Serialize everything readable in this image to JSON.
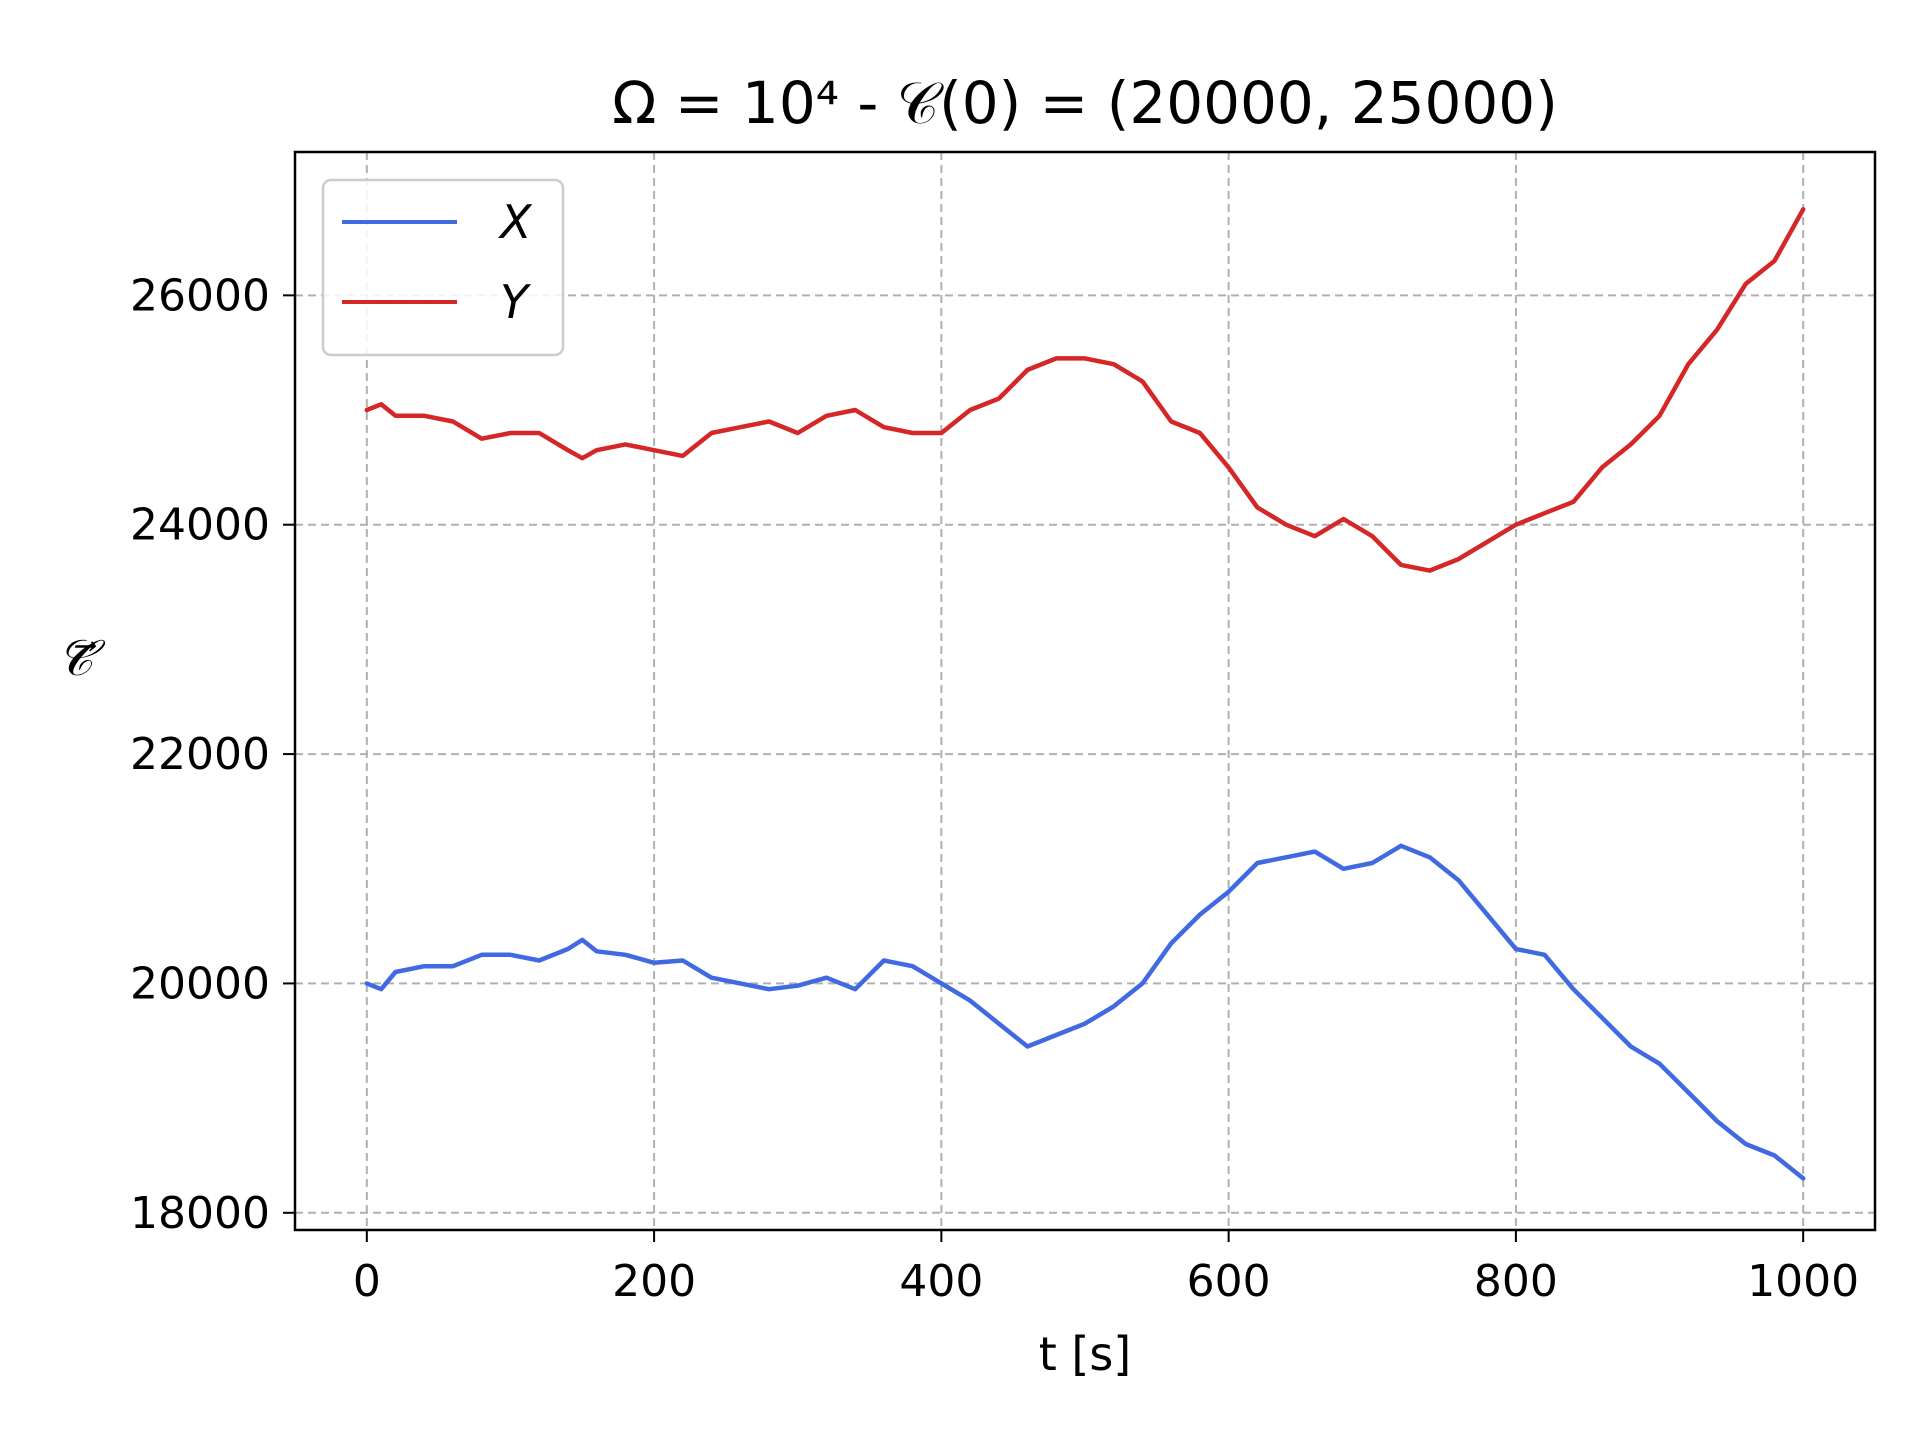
{
  "chart_data": {
    "type": "line",
    "title": "Ω = 10⁴ - 𝒞(0) = (20000, 25000)",
    "xlabel": "t [s]",
    "ylabel": "𝒞⃗",
    "xlim": [
      -50,
      1050
    ],
    "ylim": [
      17850,
      27250
    ],
    "xticks": [
      0,
      200,
      400,
      600,
      800,
      1000
    ],
    "yticks": [
      18000,
      20000,
      22000,
      24000,
      26000
    ],
    "xtick_labels": [
      "0",
      "200",
      "400",
      "600",
      "800",
      "1000"
    ],
    "ytick_labels": [
      "18000",
      "20000",
      "22000",
      "24000",
      "26000"
    ],
    "grid": true,
    "legend_position": "top-left",
    "series": [
      {
        "name": "X",
        "color": "#4169e1",
        "x": [
          0,
          10,
          20,
          40,
          60,
          80,
          100,
          120,
          140,
          150,
          160,
          180,
          200,
          220,
          240,
          260,
          280,
          300,
          320,
          340,
          360,
          380,
          400,
          420,
          440,
          460,
          480,
          500,
          520,
          540,
          560,
          580,
          600,
          620,
          640,
          660,
          680,
          700,
          720,
          740,
          760,
          780,
          800,
          820,
          840,
          860,
          880,
          900,
          920,
          940,
          960,
          980,
          1000
        ],
        "y": [
          20000,
          19950,
          20100,
          20150,
          20150,
          20250,
          20250,
          20200,
          20300,
          20380,
          20280,
          20250,
          20180,
          20200,
          20050,
          20000,
          19950,
          19980,
          20050,
          19950,
          20200,
          20150,
          20000,
          19850,
          19650,
          19450,
          19550,
          19650,
          19800,
          20000,
          20350,
          20600,
          20800,
          21050,
          21100,
          21150,
          21000,
          21050,
          21200,
          21100,
          20900,
          20600,
          20300,
          20250,
          19950,
          19700,
          19450,
          19300,
          19050,
          18800,
          18600,
          18500,
          18300
        ]
      },
      {
        "name": "Y",
        "color": "#d62728",
        "x": [
          0,
          10,
          20,
          40,
          60,
          80,
          100,
          120,
          140,
          150,
          160,
          180,
          200,
          220,
          240,
          260,
          280,
          300,
          320,
          340,
          360,
          380,
          400,
          420,
          440,
          460,
          480,
          500,
          520,
          540,
          560,
          580,
          600,
          620,
          640,
          660,
          680,
          700,
          720,
          740,
          760,
          780,
          800,
          820,
          840,
          860,
          880,
          900,
          920,
          940,
          960,
          980,
          1000
        ],
        "y": [
          25000,
          25050,
          24950,
          24950,
          24900,
          24750,
          24800,
          24800,
          24650,
          24580,
          24650,
          24700,
          24650,
          24600,
          24800,
          24850,
          24900,
          24800,
          24950,
          25000,
          24850,
          24800,
          24800,
          25000,
          25100,
          25350,
          25450,
          25450,
          25400,
          25250,
          24900,
          24800,
          24500,
          24150,
          24000,
          23900,
          24050,
          23900,
          23650,
          23600,
          23700,
          23850,
          24000,
          24100,
          24200,
          24500,
          24700,
          24950,
          25400,
          25700,
          26100,
          26300,
          26750
        ]
      }
    ]
  }
}
